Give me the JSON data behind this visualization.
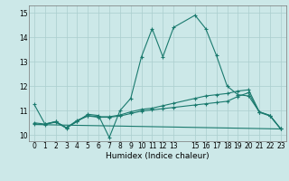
{
  "xlabel": "Humidex (Indice chaleur)",
  "bg_color": "#cce8e8",
  "plot_bg_color": "#cce8e8",
  "grid_color": "#aacece",
  "line_color": "#1a7a6e",
  "xlim": [
    -0.5,
    23.5
  ],
  "ylim": [
    9.75,
    15.3
  ],
  "xticks": [
    0,
    1,
    2,
    3,
    4,
    5,
    6,
    7,
    8,
    9,
    10,
    11,
    12,
    13,
    15,
    16,
    17,
    18,
    19,
    20,
    21,
    22,
    23
  ],
  "yticks": [
    10,
    11,
    12,
    13,
    14,
    15
  ],
  "series1_x": [
    0,
    1,
    2,
    3,
    4,
    5,
    6,
    7,
    8,
    9,
    10,
    11,
    12,
    13,
    15,
    16,
    17,
    18,
    19,
    20,
    21,
    22,
    23
  ],
  "series1_y": [
    11.25,
    10.45,
    10.55,
    10.3,
    10.55,
    10.85,
    10.8,
    9.9,
    11.0,
    11.5,
    13.2,
    14.35,
    13.2,
    14.4,
    14.9,
    14.35,
    13.25,
    12.0,
    11.65,
    11.6,
    10.95,
    10.8,
    10.25
  ],
  "series2_x": [
    0,
    1,
    2,
    3,
    4,
    5,
    6,
    7,
    8,
    9,
    10,
    11,
    12,
    13,
    15,
    16,
    17,
    18,
    19,
    20,
    21,
    22,
    23
  ],
  "series2_y": [
    10.5,
    10.45,
    10.55,
    10.3,
    10.6,
    10.8,
    10.75,
    10.75,
    10.82,
    10.95,
    11.05,
    11.1,
    11.2,
    11.3,
    11.5,
    11.6,
    11.65,
    11.7,
    11.8,
    11.85,
    10.95,
    10.8,
    10.25
  ],
  "series3_x": [
    0,
    1,
    2,
    3,
    4,
    5,
    6,
    7,
    8,
    9,
    10,
    11,
    12,
    13,
    15,
    16,
    17,
    18,
    19,
    20,
    21,
    22,
    23
  ],
  "series3_y": [
    10.45,
    10.43,
    10.53,
    10.28,
    10.58,
    10.78,
    10.73,
    10.73,
    10.78,
    10.88,
    10.98,
    11.03,
    11.08,
    11.13,
    11.23,
    11.28,
    11.33,
    11.38,
    11.58,
    11.73,
    10.93,
    10.78,
    10.25
  ],
  "series4_x": [
    0,
    23
  ],
  "series4_y": [
    10.43,
    10.25
  ]
}
